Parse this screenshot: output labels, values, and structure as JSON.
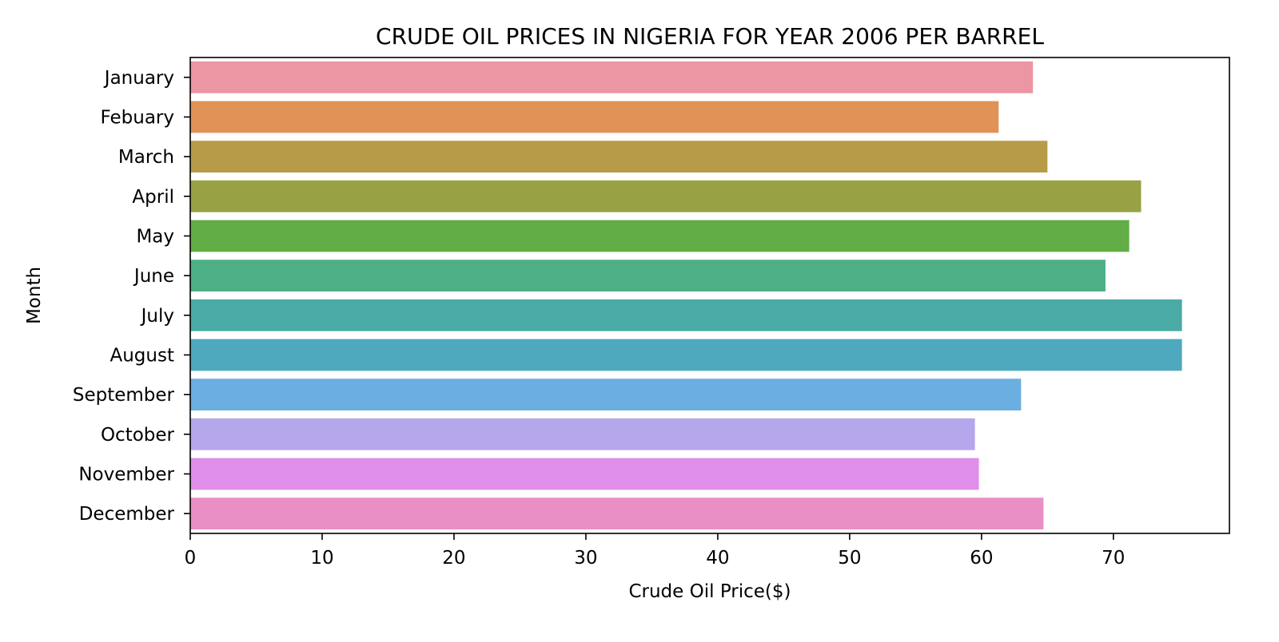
{
  "chart_data": {
    "type": "bar",
    "orientation": "horizontal",
    "title": "CRUDE OIL PRICES IN NIGERIA FOR YEAR 2006 PER BARREL",
    "xlabel": "Crude Oil Price($)",
    "ylabel": "Month",
    "categories": [
      "January",
      "Febuary",
      "March",
      "April",
      "May",
      "June",
      "July",
      "August",
      "September",
      "October",
      "November",
      "December"
    ],
    "values": [
      63.9,
      61.3,
      65.0,
      72.1,
      71.2,
      69.4,
      75.2,
      75.2,
      63.0,
      59.5,
      59.8,
      64.7
    ],
    "xlim": [
      0,
      78.8
    ],
    "xticks": [
      "0",
      "10",
      "20",
      "30",
      "40",
      "50",
      "60",
      "70"
    ],
    "grid": false,
    "legend": "none",
    "colors": [
      "#eb96a2",
      "#e19256",
      "#b89b48",
      "#98a244",
      "#62ad45",
      "#4caf85",
      "#4aaaa6",
      "#4ea9be",
      "#6aaee2",
      "#b6a6eb",
      "#df8ee9",
      "#e98fc6"
    ]
  }
}
